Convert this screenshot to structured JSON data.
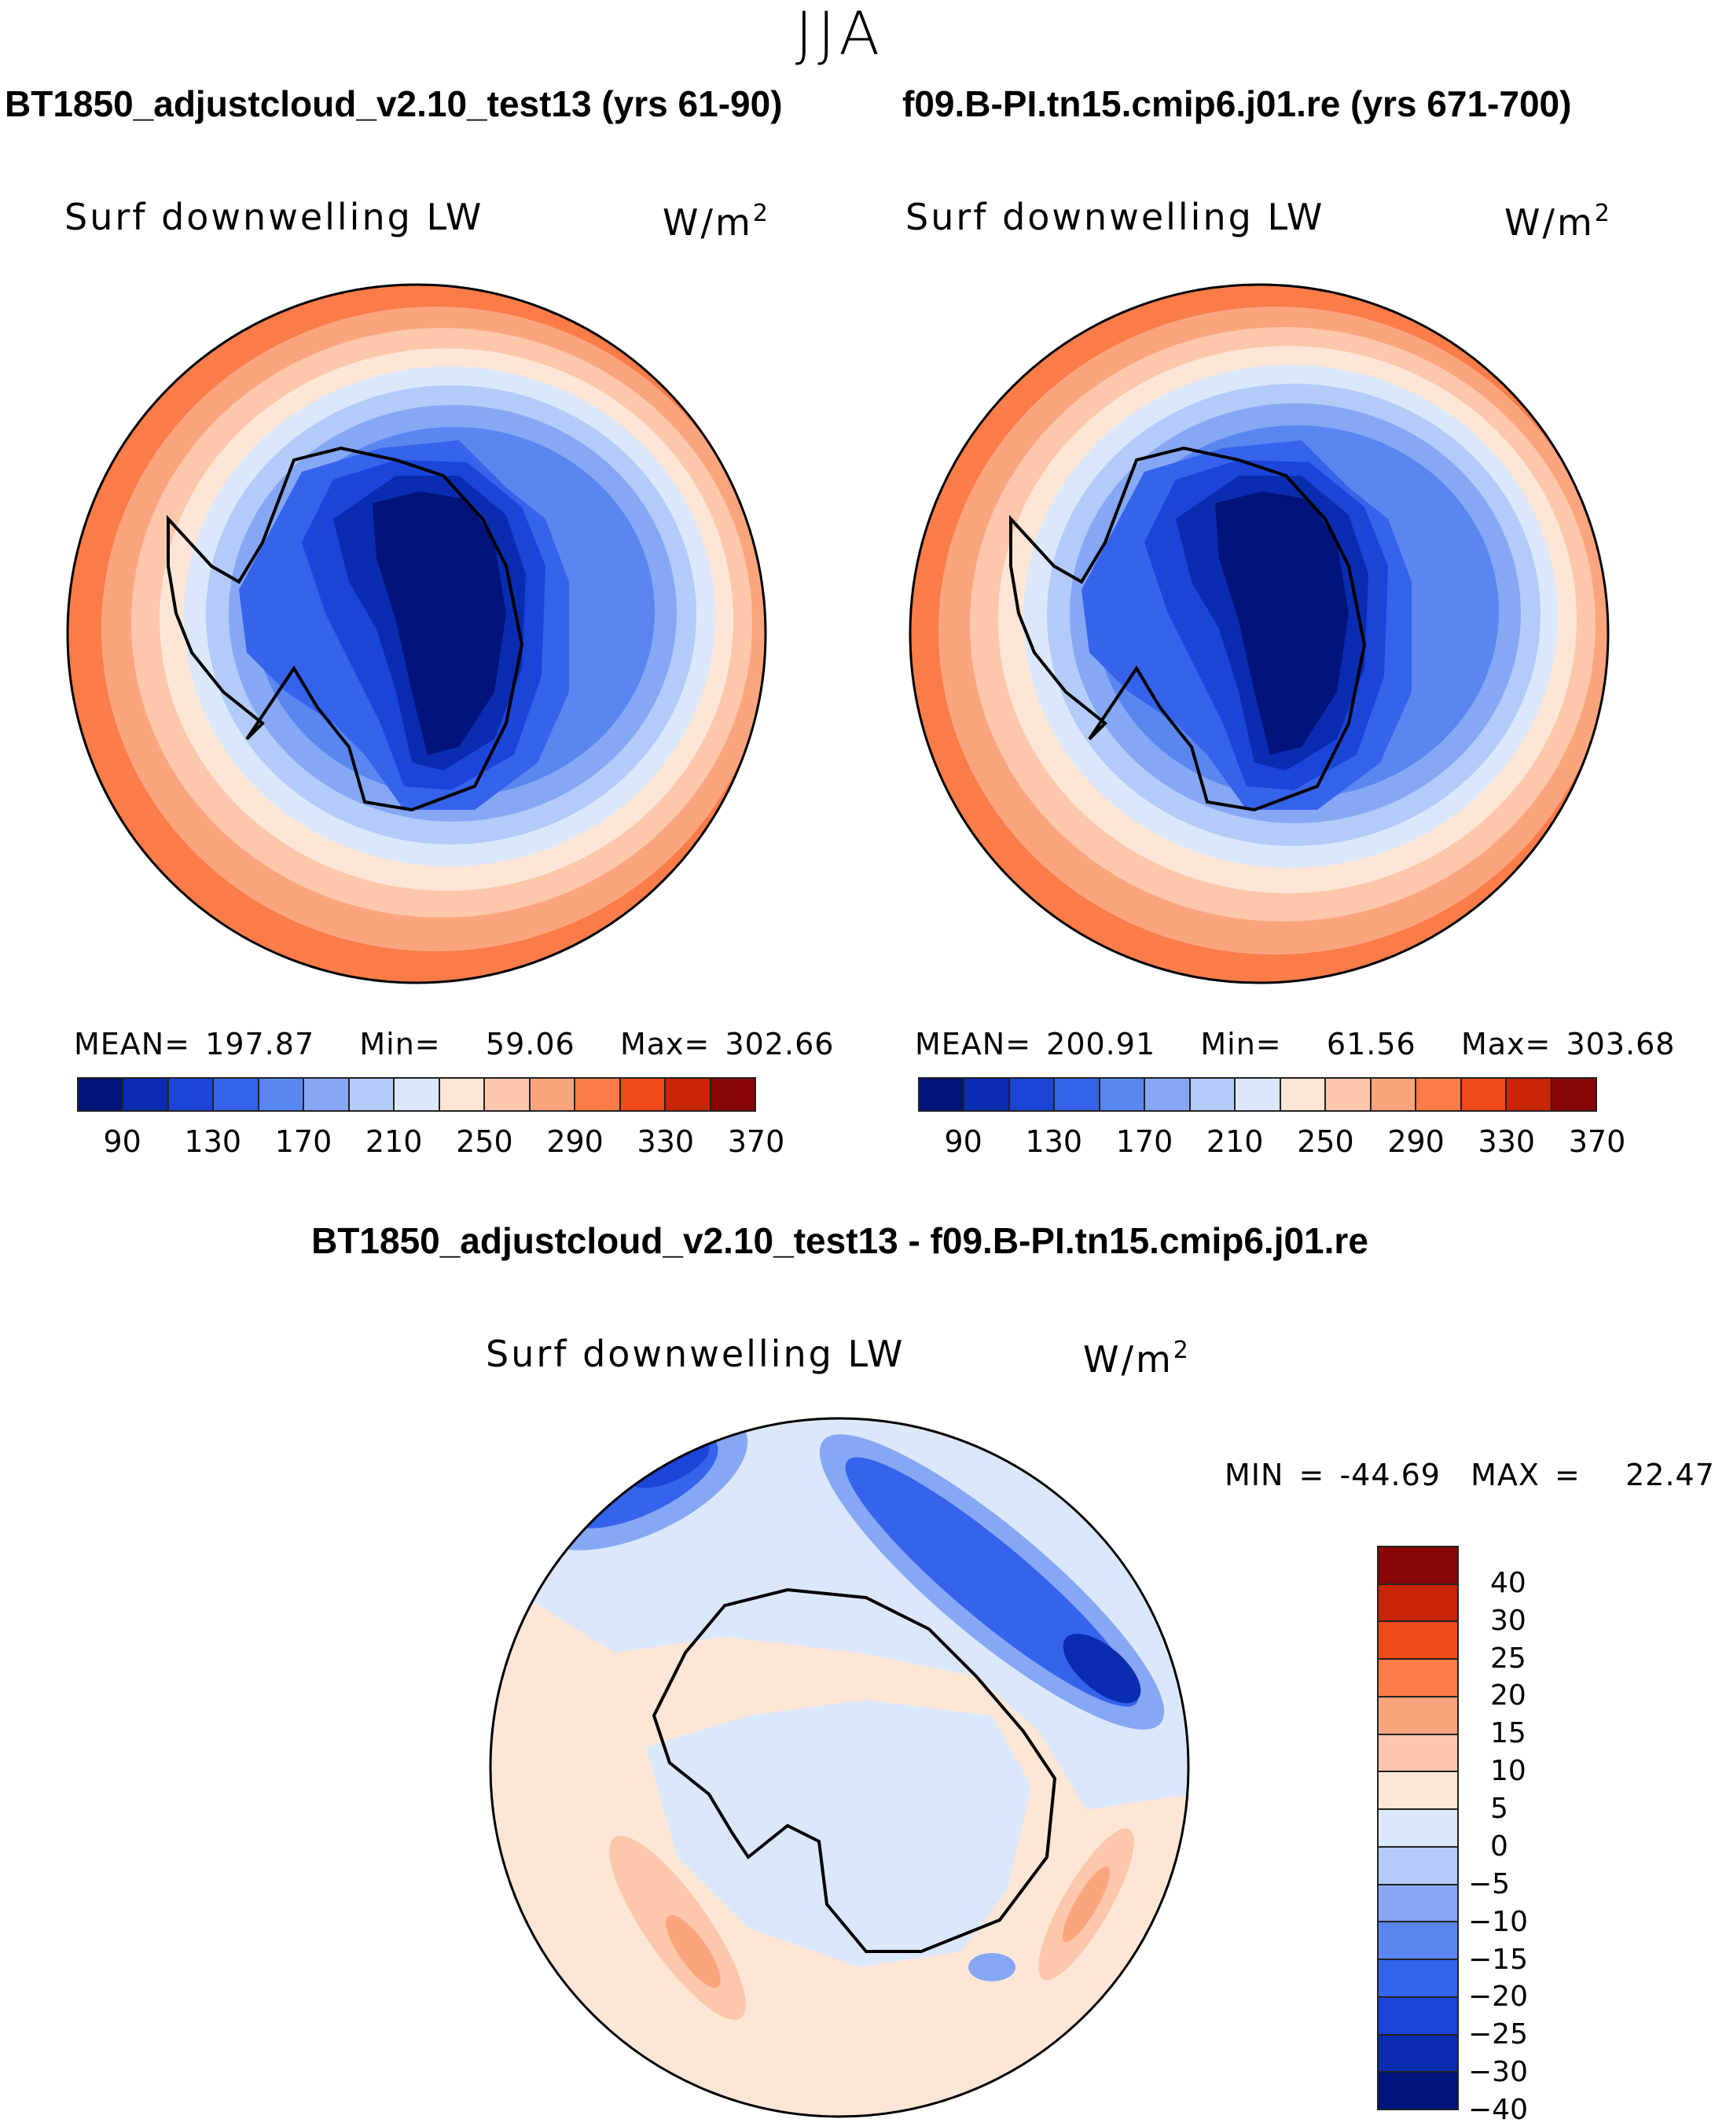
{
  "season": "JJA",
  "panels": [
    {
      "case_title": "BT1850_adjustcloud_v2.10_test13 (yrs 61-90)",
      "variable": "Surf downwelling LW",
      "units_base": "W/m",
      "units_exp": "2",
      "stats": {
        "mean_label": "MEAN=",
        "mean": "197.87",
        "min_label": "Min=",
        "min": "59.06",
        "max_label": "Max=",
        "max": "302.66"
      },
      "colorbar_ticks": [
        "90",
        "130",
        "170",
        "210",
        "250",
        "290",
        "330",
        "370"
      ]
    },
    {
      "case_title": "f09.B-PI.tn15.cmip6.j01.re (yrs 671-700)",
      "variable": "Surf downwelling LW",
      "units_base": "W/m",
      "units_exp": "2",
      "stats": {
        "mean_label": "MEAN=",
        "mean": "200.91",
        "min_label": "Min=",
        "min": "61.56",
        "max_label": "Max=",
        "max": "303.68"
      },
      "colorbar_ticks": [
        "90",
        "130",
        "170",
        "210",
        "250",
        "290",
        "330",
        "370"
      ]
    }
  ],
  "abs_colors": [
    "#00137a",
    "#0a2cb0",
    "#1b45d9",
    "#3563eb",
    "#5a86f0",
    "#86a8f4",
    "#b3cbf8",
    "#dbe8fb",
    "#fde6d6",
    "#fcc7ab",
    "#fba57f",
    "#fa7c49",
    "#ee4a1a",
    "#c82408",
    "#8a0606"
  ],
  "diff": {
    "title": "BT1850_adjustcloud_v2.10_test13 - f09.B-PI.tn15.cmip6.j01.re",
    "variable": "Surf downwelling LW",
    "units_base": "W/m",
    "units_exp": "2",
    "stats": {
      "min_label": "MIN =",
      "min": "-44.69",
      "max_label": "MAX =",
      "max": "22.47"
    },
    "levels": [
      "40",
      "30",
      "25",
      "20",
      "15",
      "10",
      "5",
      "0",
      "-5",
      "-10",
      "-15",
      "-20",
      "-25",
      "-30",
      "-40"
    ],
    "colors": [
      "#8a0606",
      "#c82408",
      "#ee4a1a",
      "#fa7c49",
      "#fba57f",
      "#fcc7ab",
      "#fde6d6",
      "#dbe8fb",
      "#b3cbf8",
      "#86a8f4",
      "#5a86f0",
      "#3563eb",
      "#1b45d9",
      "#0a2cb0",
      "#00137a"
    ]
  }
}
